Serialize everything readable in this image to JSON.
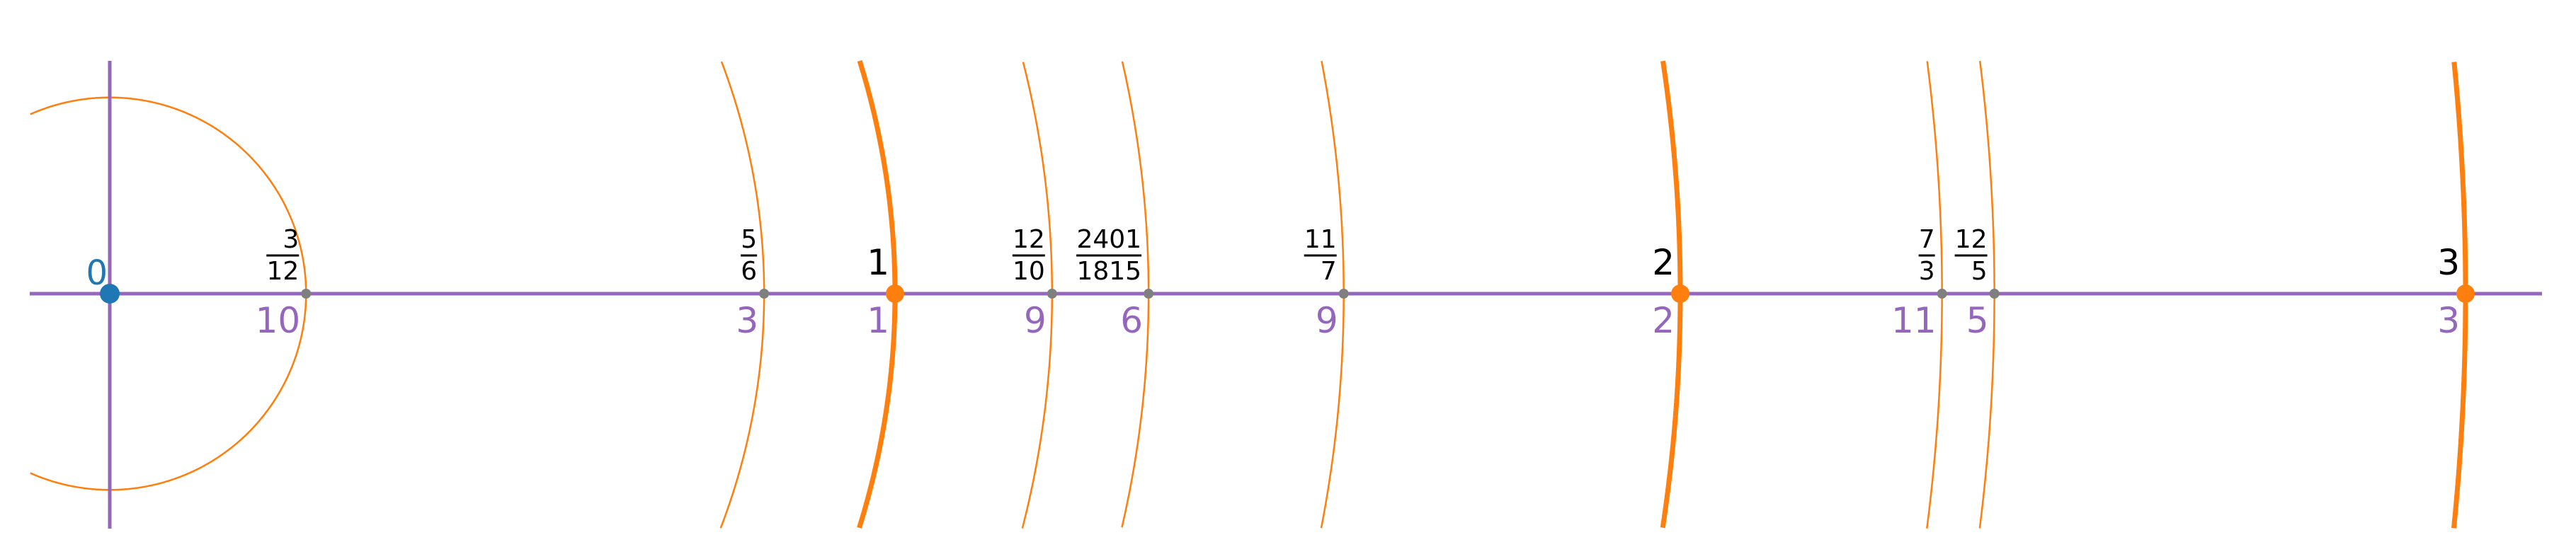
{
  "colors": {
    "axis": "#9467bd",
    "arc": "#ff7f0e",
    "origin": "#1f77b4",
    "fraction_point": "#7f7f7f",
    "label": "#000000",
    "index_label": "#9467bd"
  },
  "origin": {
    "value": 0,
    "label": "0"
  },
  "points": [
    {
      "value": 0.25,
      "num": "3",
      "den": "12",
      "index": "10",
      "integer": false
    },
    {
      "value": 0.8333,
      "num": "5",
      "den": "6",
      "index": "3",
      "integer": false
    },
    {
      "value": 1,
      "label": "1",
      "index": "1",
      "integer": true
    },
    {
      "value": 1.2,
      "num": "12",
      "den": "10",
      "index": "9",
      "integer": false
    },
    {
      "value": 1.3229,
      "num": "2401",
      "den": "1815",
      "index": "6",
      "integer": false
    },
    {
      "value": 1.5714,
      "num": "11",
      "den": "7",
      "index": "9",
      "integer": false
    },
    {
      "value": 2,
      "label": "2",
      "index": "2",
      "integer": true
    },
    {
      "value": 2.3333,
      "num": "7",
      "den": "3",
      "index": "11",
      "integer": false
    },
    {
      "value": 2.4,
      "num": "12",
      "den": "5",
      "index": "5",
      "integer": false
    },
    {
      "value": 3,
      "label": "3",
      "index": "3",
      "integer": true
    }
  ]
}
